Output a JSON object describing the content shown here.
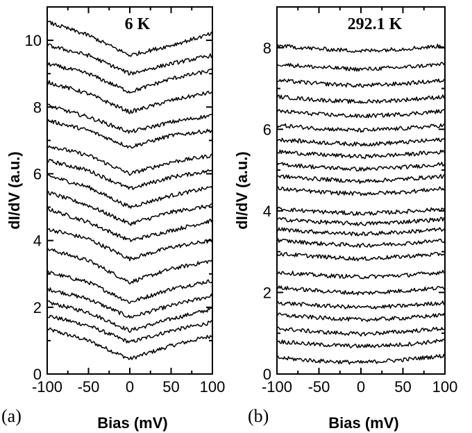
{
  "chart_data": [
    {
      "type": "line",
      "panel_label": "(a)",
      "title": "6 K",
      "xlabel": "Bias (mV)",
      "ylabel": "dI/dV (a.u.)",
      "xlim": [
        -100,
        100
      ],
      "ylim": [
        0,
        11
      ],
      "xticks": [
        -100,
        -50,
        0,
        50,
        100
      ],
      "yticks": [
        0,
        2,
        4,
        6,
        8,
        10
      ],
      "grid": false,
      "legend": "none",
      "curve_shape": "V-shaped dip at zero bias",
      "series": [
        {
          "x": [
            -100,
            -50,
            0,
            50,
            100
          ],
          "y": [
            1.35,
            1.0,
            0.45,
            0.85,
            1.15
          ]
        },
        {
          "x": [
            -100,
            -50,
            0,
            50,
            100
          ],
          "y": [
            1.75,
            1.45,
            0.95,
            1.3,
            1.55
          ]
        },
        {
          "x": [
            -100,
            -50,
            0,
            50,
            100
          ],
          "y": [
            2.15,
            1.85,
            1.3,
            1.65,
            1.95
          ]
        },
        {
          "x": [
            -100,
            -50,
            0,
            50,
            100
          ],
          "y": [
            2.55,
            2.25,
            1.7,
            2.05,
            2.35
          ]
        },
        {
          "x": [
            -100,
            -50,
            0,
            50,
            100
          ],
          "y": [
            3.05,
            2.75,
            2.15,
            2.55,
            2.8
          ]
        },
        {
          "x": [
            -100,
            -50,
            0,
            50,
            100
          ],
          "y": [
            3.75,
            3.4,
            2.75,
            3.15,
            3.4
          ]
        },
        {
          "x": [
            -100,
            -50,
            0,
            50,
            100
          ],
          "y": [
            4.35,
            4.05,
            3.45,
            3.8,
            4.0
          ]
        },
        {
          "x": [
            -100,
            -50,
            0,
            50,
            100
          ],
          "y": [
            4.95,
            4.55,
            4.0,
            4.3,
            4.6
          ]
        },
        {
          "x": [
            -100,
            -50,
            0,
            50,
            100
          ],
          "y": [
            5.45,
            5.05,
            4.5,
            4.85,
            5.05
          ]
        },
        {
          "x": [
            -100,
            -50,
            0,
            50,
            100
          ],
          "y": [
            5.95,
            5.6,
            5.0,
            5.35,
            5.6
          ]
        },
        {
          "x": [
            -100,
            -50,
            0,
            50,
            100
          ],
          "y": [
            6.4,
            6.1,
            5.55,
            5.9,
            6.1
          ]
        },
        {
          "x": [
            -100,
            -50,
            0,
            50,
            100
          ],
          "y": [
            6.85,
            6.55,
            6.0,
            6.35,
            6.55
          ]
        },
        {
          "x": [
            -100,
            -50,
            0,
            50,
            100
          ],
          "y": [
            7.6,
            7.3,
            6.8,
            7.15,
            7.3
          ]
        },
        {
          "x": [
            -100,
            -50,
            0,
            50,
            100
          ],
          "y": [
            8.05,
            7.7,
            7.25,
            7.55,
            7.75
          ]
        },
        {
          "x": [
            -100,
            -50,
            0,
            50,
            100
          ],
          "y": [
            8.75,
            8.4,
            7.85,
            8.2,
            8.45
          ]
        },
        {
          "x": [
            -100,
            -50,
            0,
            50,
            100
          ],
          "y": [
            9.3,
            9.0,
            8.45,
            8.85,
            9.1
          ]
        },
        {
          "x": [
            -100,
            -50,
            0,
            50,
            100
          ],
          "y": [
            9.85,
            9.55,
            9.0,
            9.3,
            9.55
          ]
        },
        {
          "x": [
            -100,
            -50,
            0,
            50,
            100
          ],
          "y": [
            10.55,
            10.15,
            9.55,
            9.85,
            10.2
          ]
        }
      ]
    },
    {
      "type": "line",
      "panel_label": "(b)",
      "title": "292.1 K",
      "xlabel": "Bias (mV)",
      "ylabel": "dI/dV (a.u.)",
      "xlim": [
        -100,
        100
      ],
      "ylim": [
        0,
        9
      ],
      "xticks": [
        -100,
        -50,
        0,
        50,
        100
      ],
      "yticks": [
        0,
        2,
        4,
        6,
        8
      ],
      "grid": false,
      "legend": "none",
      "curve_shape": "nearly flat, slight parabolic dip",
      "series": [
        {
          "x": [
            -100,
            -50,
            0,
            50,
            100
          ],
          "y": [
            0.4,
            0.32,
            0.28,
            0.35,
            0.45
          ]
        },
        {
          "x": [
            -100,
            -50,
            0,
            50,
            100
          ],
          "y": [
            0.8,
            0.72,
            0.68,
            0.72,
            0.82
          ]
        },
        {
          "x": [
            -100,
            -50,
            0,
            50,
            100
          ],
          "y": [
            1.12,
            1.03,
            0.98,
            1.04,
            1.12
          ]
        },
        {
          "x": [
            -100,
            -50,
            0,
            50,
            100
          ],
          "y": [
            1.45,
            1.38,
            1.33,
            1.37,
            1.45
          ]
        },
        {
          "x": [
            -100,
            -50,
            0,
            50,
            100
          ],
          "y": [
            1.75,
            1.68,
            1.63,
            1.67,
            1.75
          ]
        },
        {
          "x": [
            -100,
            -50,
            0,
            50,
            100
          ],
          "y": [
            2.12,
            2.04,
            1.98,
            2.04,
            2.12
          ]
        },
        {
          "x": [
            -100,
            -50,
            0,
            50,
            100
          ],
          "y": [
            2.5,
            2.42,
            2.38,
            2.42,
            2.5
          ]
        },
        {
          "x": [
            -100,
            -50,
            0,
            50,
            100
          ],
          "y": [
            2.95,
            2.88,
            2.82,
            2.88,
            2.95
          ]
        },
        {
          "x": [
            -100,
            -50,
            0,
            50,
            100
          ],
          "y": [
            3.28,
            3.2,
            3.15,
            3.2,
            3.28
          ]
        },
        {
          "x": [
            -100,
            -50,
            0,
            50,
            100
          ],
          "y": [
            3.55,
            3.48,
            3.43,
            3.48,
            3.55
          ]
        },
        {
          "x": [
            -100,
            -50,
            0,
            50,
            100
          ],
          "y": [
            3.8,
            3.73,
            3.68,
            3.73,
            3.8
          ]
        },
        {
          "x": [
            -100,
            -50,
            0,
            50,
            100
          ],
          "y": [
            4.05,
            3.98,
            3.93,
            3.98,
            4.05
          ]
        },
        {
          "x": [
            -100,
            -50,
            0,
            50,
            100
          ],
          "y": [
            4.55,
            4.46,
            4.42,
            4.46,
            4.55
          ]
        },
        {
          "x": [
            -100,
            -50,
            0,
            50,
            100
          ],
          "y": [
            4.85,
            4.78,
            4.72,
            4.78,
            4.85
          ]
        },
        {
          "x": [
            -100,
            -50,
            0,
            50,
            100
          ],
          "y": [
            5.15,
            5.07,
            5.02,
            5.07,
            5.15
          ]
        },
        {
          "x": [
            -100,
            -50,
            0,
            50,
            100
          ],
          "y": [
            5.45,
            5.38,
            5.33,
            5.38,
            5.45
          ]
        },
        {
          "x": [
            -100,
            -50,
            0,
            50,
            100
          ],
          "y": [
            5.75,
            5.68,
            5.63,
            5.68,
            5.75
          ]
        },
        {
          "x": [
            -100,
            -50,
            0,
            50,
            100
          ],
          "y": [
            6.1,
            6.02,
            5.97,
            6.02,
            6.1
          ]
        },
        {
          "x": [
            -100,
            -50,
            0,
            50,
            100
          ],
          "y": [
            6.45,
            6.37,
            6.32,
            6.37,
            6.45
          ]
        },
        {
          "x": [
            -100,
            -50,
            0,
            50,
            100
          ],
          "y": [
            6.8,
            6.72,
            6.67,
            6.72,
            6.8
          ]
        },
        {
          "x": [
            -100,
            -50,
            0,
            50,
            100
          ],
          "y": [
            7.2,
            7.12,
            7.07,
            7.12,
            7.2
          ]
        },
        {
          "x": [
            -100,
            -50,
            0,
            50,
            100
          ],
          "y": [
            7.6,
            7.52,
            7.47,
            7.52,
            7.6
          ]
        },
        {
          "x": [
            -100,
            -50,
            0,
            50,
            100
          ],
          "y": [
            8.05,
            7.97,
            7.92,
            7.97,
            8.05
          ]
        }
      ]
    }
  ]
}
